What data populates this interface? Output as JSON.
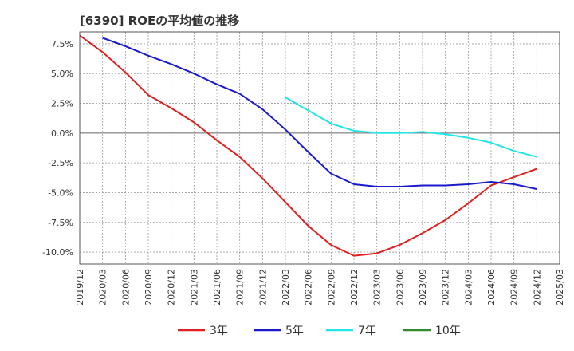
{
  "chart_data": {
    "type": "line",
    "title": "[6390]  ROEの平均値の推移",
    "xlabel": "",
    "ylabel": "",
    "x_ticks": [
      "2019/12",
      "2020/03",
      "2020/06",
      "2020/09",
      "2020/12",
      "2021/03",
      "2021/06",
      "2021/09",
      "2021/12",
      "2022/03",
      "2022/06",
      "2022/09",
      "2022/12",
      "2023/03",
      "2023/06",
      "2023/09",
      "2023/12",
      "2024/03",
      "2024/06",
      "2024/09",
      "2024/12",
      "2025/03"
    ],
    "y_ticks": [
      {
        "value": 7.5,
        "label": "7.5%"
      },
      {
        "value": 5.0,
        "label": "5.0%"
      },
      {
        "value": 2.5,
        "label": "2.5%"
      },
      {
        "value": 0.0,
        "label": "0.0%"
      },
      {
        "value": -2.5,
        "label": "-2.5%"
      },
      {
        "value": -5.0,
        "label": "-5.0%"
      },
      {
        "value": -7.5,
        "label": "-7.5%"
      },
      {
        "value": -10.0,
        "label": "-10.0%"
      }
    ],
    "ylim": [
      -11.0,
      8.5
    ],
    "grid": true,
    "legend_position": "bottom",
    "series": [
      {
        "name": "3年",
        "color": "#e02020",
        "points": [
          [
            "2019/12",
            8.2
          ],
          [
            "2020/03",
            6.8
          ],
          [
            "2020/06",
            5.1
          ],
          [
            "2020/09",
            3.2
          ],
          [
            "2020/12",
            2.1
          ],
          [
            "2021/03",
            0.9
          ],
          [
            "2021/06",
            -0.6
          ],
          [
            "2021/09",
            -2.0
          ],
          [
            "2021/12",
            -3.8
          ],
          [
            "2022/03",
            -5.8
          ],
          [
            "2022/06",
            -7.8
          ],
          [
            "2022/09",
            -9.4
          ],
          [
            "2022/12",
            -10.3
          ],
          [
            "2023/03",
            -10.1
          ],
          [
            "2023/06",
            -9.4
          ],
          [
            "2023/09",
            -8.4
          ],
          [
            "2023/12",
            -7.3
          ],
          [
            "2024/03",
            -5.9
          ],
          [
            "2024/06",
            -4.4
          ],
          [
            "2024/09",
            -3.7
          ],
          [
            "2024/12",
            -3.0
          ]
        ]
      },
      {
        "name": "5年",
        "color": "#1a1acc",
        "points": [
          [
            "2020/03",
            8.0
          ],
          [
            "2020/06",
            7.3
          ],
          [
            "2020/09",
            6.5
          ],
          [
            "2020/12",
            5.8
          ],
          [
            "2021/03",
            5.0
          ],
          [
            "2021/06",
            4.1
          ],
          [
            "2021/09",
            3.3
          ],
          [
            "2021/12",
            2.0
          ],
          [
            "2022/03",
            0.3
          ],
          [
            "2022/06",
            -1.6
          ],
          [
            "2022/09",
            -3.4
          ],
          [
            "2022/12",
            -4.3
          ],
          [
            "2023/03",
            -4.5
          ],
          [
            "2023/06",
            -4.5
          ],
          [
            "2023/09",
            -4.4
          ],
          [
            "2023/12",
            -4.4
          ],
          [
            "2024/03",
            -4.3
          ],
          [
            "2024/06",
            -4.1
          ],
          [
            "2024/09",
            -4.3
          ],
          [
            "2024/12",
            -4.7
          ]
        ]
      },
      {
        "name": "7年",
        "color": "#22e6e6",
        "points": [
          [
            "2022/03",
            3.0
          ],
          [
            "2022/06",
            1.9
          ],
          [
            "2022/09",
            0.8
          ],
          [
            "2022/12",
            0.2
          ],
          [
            "2023/03",
            0.0
          ],
          [
            "2023/06",
            0.0
          ],
          [
            "2023/09",
            0.1
          ],
          [
            "2023/12",
            -0.1
          ],
          [
            "2024/03",
            -0.4
          ],
          [
            "2024/06",
            -0.8
          ],
          [
            "2024/09",
            -1.5
          ],
          [
            "2024/12",
            -2.0
          ]
        ]
      },
      {
        "name": "10年",
        "color": "#2e8b2e",
        "points": []
      }
    ]
  }
}
